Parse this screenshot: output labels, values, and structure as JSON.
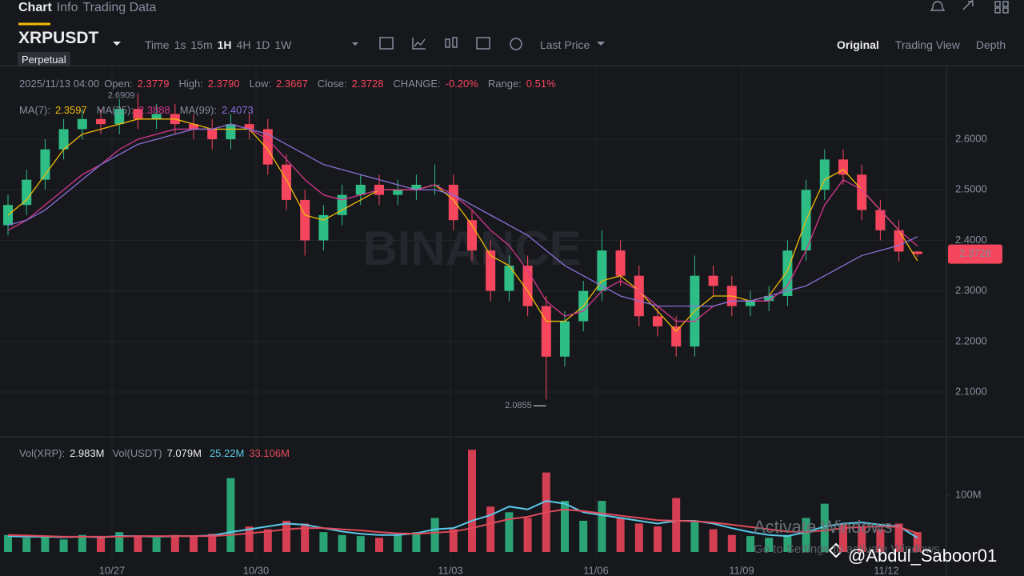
{
  "tabs": [
    "Chart",
    "Info",
    "Trading Data"
  ],
  "symbol": "XRPUSDT",
  "contract": "Perpetual",
  "toolbar": {
    "intervals": [
      "Time",
      "1s",
      "15m",
      "1H",
      "4H",
      "1D",
      "1W"
    ],
    "price_type": "Last Price",
    "views": [
      "Original",
      "Trading View",
      "Depth"
    ]
  },
  "info_row": {
    "time": "2025/11/13 04:00",
    "fields": [
      {
        "label": "Open:",
        "value": "2.3779"
      },
      {
        "label": "High:",
        "value": "2.3790"
      },
      {
        "label": "Low:",
        "value": "2.3667"
      },
      {
        "label": "Close:",
        "value": "2.3728"
      },
      {
        "label": "CHANGE:",
        "value": "-0.20%"
      },
      {
        "label": "Range:",
        "value": "0.51%"
      }
    ]
  },
  "volume_row": {
    "fields": [
      {
        "label": "Vol(XRP):",
        "value": "2.983M"
      },
      {
        "label": "Vol(USDT)",
        "value": "7.079M"
      }
    ],
    "ma_values": [
      "25.22M",
      "33.106M"
    ]
  },
  "x_axis_labels": [
    "10/27",
    "10/30",
    "11/03",
    "11/06",
    "11/09",
    "11/12"
  ],
  "watermark": "BINANCE",
  "overlay": [
    "Activate Windows",
    "Go to Settings to activate Windows."
  ],
  "credit": "@Abdul_Saboor01",
  "chart_data": [
    {
      "type": "candlestick",
      "up_color": "#2ebd85",
      "down_color": "#f6465d",
      "open": [
        2.43,
        2.47,
        2.52,
        2.58,
        2.62,
        2.64,
        2.63,
        2.66,
        2.64,
        2.65,
        2.63,
        2.62,
        2.6,
        2.63,
        2.62,
        2.55,
        2.48,
        2.4,
        2.45,
        2.49,
        2.51,
        2.49,
        2.5,
        2.51,
        2.51,
        2.44,
        2.38,
        2.3,
        2.35,
        2.27,
        2.17,
        2.24,
        2.3,
        2.38,
        2.33,
        2.25,
        2.23,
        2.19,
        2.33,
        2.31,
        2.27,
        2.28,
        2.29,
        2.38,
        2.5,
        2.56,
        2.53,
        2.46,
        2.42,
        2.3779
      ],
      "high": [
        2.49,
        2.54,
        2.6,
        2.64,
        2.66,
        2.66,
        2.68,
        2.6909,
        2.67,
        2.67,
        2.65,
        2.64,
        2.65,
        2.65,
        2.64,
        2.57,
        2.5,
        2.47,
        2.51,
        2.53,
        2.53,
        2.52,
        2.53,
        2.55,
        2.53,
        2.46,
        2.4,
        2.37,
        2.37,
        2.29,
        2.26,
        2.32,
        2.42,
        2.4,
        2.35,
        2.27,
        2.25,
        2.37,
        2.35,
        2.33,
        2.3,
        2.31,
        2.4,
        2.52,
        2.58,
        2.58,
        2.55,
        2.48,
        2.44,
        2.379
      ],
      "low": [
        2.41,
        2.45,
        2.5,
        2.56,
        2.6,
        2.61,
        2.61,
        2.62,
        2.62,
        2.61,
        2.6,
        2.58,
        2.58,
        2.6,
        2.53,
        2.46,
        2.37,
        2.38,
        2.43,
        2.47,
        2.47,
        2.47,
        2.48,
        2.49,
        2.42,
        2.36,
        2.28,
        2.28,
        2.25,
        2.0855,
        2.15,
        2.22,
        2.28,
        2.31,
        2.23,
        2.21,
        2.17,
        2.17,
        2.29,
        2.25,
        2.25,
        2.26,
        2.27,
        2.36,
        2.48,
        2.51,
        2.44,
        2.4,
        2.3579,
        2.3667
      ],
      "close": [
        2.47,
        2.52,
        2.58,
        2.62,
        2.64,
        2.63,
        2.66,
        2.64,
        2.65,
        2.63,
        2.62,
        2.6,
        2.63,
        2.62,
        2.55,
        2.48,
        2.4,
        2.45,
        2.49,
        2.51,
        2.49,
        2.5,
        2.51,
        2.51,
        2.44,
        2.38,
        2.3,
        2.35,
        2.27,
        2.17,
        2.24,
        2.3,
        2.38,
        2.33,
        2.25,
        2.23,
        2.19,
        2.33,
        2.31,
        2.27,
        2.28,
        2.29,
        2.38,
        2.5,
        2.56,
        2.53,
        2.46,
        2.42,
        2.3779,
        2.3728
      ],
      "series": [
        {
          "name": "MA(7):",
          "color": "#f0b90b",
          "values": [
            2.45,
            2.48,
            2.53,
            2.58,
            2.61,
            2.62,
            2.63,
            2.64,
            2.64,
            2.64,
            2.63,
            2.62,
            2.62,
            2.62,
            2.58,
            2.52,
            2.45,
            2.44,
            2.46,
            2.48,
            2.5,
            2.5,
            2.5,
            2.51,
            2.48,
            2.43,
            2.37,
            2.35,
            2.3,
            2.24,
            2.24,
            2.27,
            2.32,
            2.33,
            2.3,
            2.26,
            2.22,
            2.26,
            2.29,
            2.29,
            2.28,
            2.29,
            2.34,
            2.44,
            2.52,
            2.54,
            2.5,
            2.46,
            2.42,
            2.3597
          ]
        },
        {
          "name": "MA(25):",
          "color": "#d6368f",
          "values": [
            2.42,
            2.44,
            2.47,
            2.5,
            2.53,
            2.55,
            2.58,
            2.6,
            2.61,
            2.62,
            2.62,
            2.62,
            2.63,
            2.62,
            2.6,
            2.56,
            2.52,
            2.49,
            2.48,
            2.49,
            2.5,
            2.5,
            2.5,
            2.51,
            2.49,
            2.46,
            2.42,
            2.39,
            2.34,
            2.28,
            2.25,
            2.26,
            2.3,
            2.32,
            2.3,
            2.27,
            2.24,
            2.24,
            2.27,
            2.28,
            2.28,
            2.28,
            2.31,
            2.38,
            2.47,
            2.52,
            2.5,
            2.46,
            2.42,
            2.3888
          ]
        },
        {
          "name": "MA(99):",
          "color": "#8a6fd8",
          "values": [
            2.43,
            2.44,
            2.46,
            2.49,
            2.52,
            2.55,
            2.57,
            2.59,
            2.6,
            2.61,
            2.62,
            2.62,
            2.63,
            2.62,
            2.61,
            2.59,
            2.57,
            2.55,
            2.54,
            2.53,
            2.52,
            2.51,
            2.5,
            2.5,
            2.49,
            2.47,
            2.45,
            2.43,
            2.41,
            2.38,
            2.35,
            2.33,
            2.31,
            2.29,
            2.28,
            2.27,
            2.27,
            2.27,
            2.27,
            2.28,
            2.28,
            2.29,
            2.3,
            2.31,
            2.33,
            2.35,
            2.37,
            2.38,
            2.39,
            2.4073
          ]
        }
      ],
      "ylim": [
        2.013,
        2.741
      ],
      "yticks": [
        {
          "value": 2.1,
          "label": "2.1000"
        },
        {
          "value": 2.2,
          "label": "2.2000"
        },
        {
          "value": 2.3,
          "label": "2.3000"
        },
        {
          "value": 2.4,
          "label": "2.4000"
        },
        {
          "value": 2.5,
          "label": "2.5000"
        },
        {
          "value": 2.6,
          "label": "2.6000"
        }
      ],
      "grid": true
    },
    {
      "type": "bar",
      "values": [
        30,
        25,
        28,
        22,
        30,
        25,
        35,
        28,
        25,
        30,
        28,
        32,
        130,
        45,
        40,
        55,
        50,
        35,
        30,
        28,
        25,
        30,
        35,
        60,
        40,
        180,
        80,
        70,
        60,
        140,
        90,
        55,
        90,
        60,
        50,
        45,
        95,
        55,
        40,
        30,
        28,
        25,
        30,
        60,
        85,
        50,
        45,
        40,
        50,
        35
      ],
      "series": [
        {
          "color": "#5bc8e8",
          "values": [
            28,
            27,
            27,
            26,
            27,
            26,
            28,
            28,
            27,
            28,
            28,
            29,
            35,
            40,
            45,
            50,
            48,
            42,
            36,
            32,
            30,
            30,
            33,
            40,
            42,
            55,
            65,
            80,
            75,
            90,
            85,
            70,
            65,
            60,
            55,
            50,
            55,
            55,
            50,
            42,
            35,
            30,
            28,
            35,
            45,
            50,
            52,
            48,
            45,
            25.22
          ]
        },
        {
          "color": "#e04a5a",
          "values": [
            30,
            29,
            28,
            27,
            27,
            27,
            27,
            28,
            28,
            28,
            28,
            28,
            30,
            33,
            36,
            40,
            42,
            42,
            40,
            38,
            35,
            33,
            32,
            34,
            36,
            42,
            50,
            58,
            62,
            70,
            75,
            72,
            68,
            64,
            60,
            56,
            55,
            54,
            52,
            48,
            44,
            40,
            36,
            35,
            38,
            42,
            44,
            45,
            44,
            33.106
          ]
        }
      ],
      "ylim": [
        0,
        200
      ],
      "yticks": [
        {
          "value": 100,
          "label": "100M"
        }
      ]
    }
  ]
}
